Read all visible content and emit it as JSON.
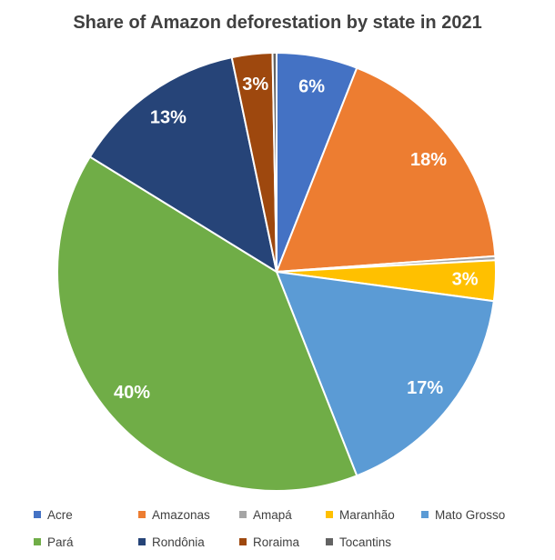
{
  "page": {
    "background": "#ffffff",
    "title_color": "#404040",
    "legend_text_color": "#404040",
    "data_label_color": "#ffffff"
  },
  "chart_data": {
    "type": "pie",
    "title": "Share of Amazon deforestation by state in 2021",
    "categories": [
      "Acre",
      "Amazonas",
      "Amapá",
      "Maranhão",
      "Mato Grosso",
      "Pará",
      "Rondônia",
      "Roraima",
      "Tocantins"
    ],
    "values": [
      6,
      18,
      0.3,
      3,
      17,
      40,
      13,
      3,
      0.3
    ],
    "data_labels": [
      "6%",
      "18%",
      "",
      "3%",
      "17%",
      "40%",
      "13%",
      "3%",
      ""
    ],
    "colors": [
      "#4472C4",
      "#ED7D31",
      "#A5A5A5",
      "#FFC000",
      "#5B9BD5",
      "#70AD47",
      "#264478",
      "#9E480E",
      "#636363"
    ],
    "start_angle": 0,
    "direction": "clockwise",
    "legend_position": "bottom",
    "legend_rows": [
      [
        "Acre",
        "Amazonas",
        "Amapá",
        "Maranhão",
        "Mato Grosso"
      ],
      [
        "Pará",
        "Rondônia",
        "Roraima",
        "Tocantins"
      ]
    ]
  }
}
